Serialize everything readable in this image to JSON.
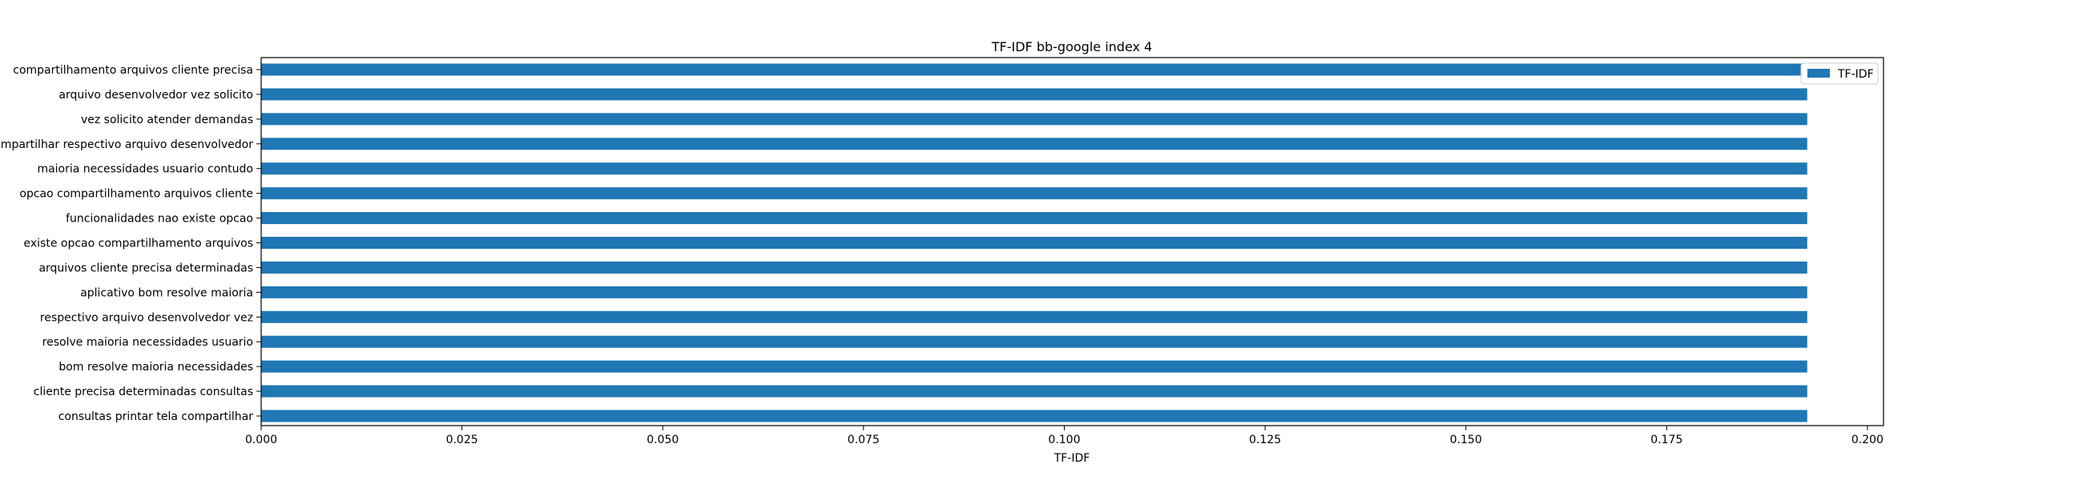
{
  "chart_data": {
    "type": "bar",
    "orientation": "horizontal",
    "title": "TF-IDF bb-google index 4",
    "xlabel": "TF-IDF",
    "ylabel": "",
    "xlim": [
      0,
      0.202
    ],
    "xticks": [
      "0.000",
      "0.025",
      "0.050",
      "0.075",
      "0.100",
      "0.125",
      "0.150",
      "0.175",
      "0.200"
    ],
    "xtick_values": [
      0,
      0.025,
      0.05,
      0.075,
      0.1,
      0.125,
      0.15,
      0.175,
      0.2
    ],
    "categories": [
      "compartilhamento arquivos cliente precisa",
      "arquivo desenvolvedor vez solicito",
      "vez solicito atender demandas",
      "compartilhar respectivo arquivo desenvolvedor",
      "maioria necessidades usuario contudo",
      "opcao compartilhamento arquivos cliente",
      "funcionalidades nao existe opcao",
      "existe opcao compartilhamento arquivos",
      "arquivos cliente precisa determinadas",
      "aplicativo bom resolve maioria",
      "respectivo arquivo desenvolvedor vez",
      "resolve maioria necessidades usuario",
      "bom resolve maioria necessidades",
      "cliente precisa determinadas consultas",
      "consultas printar tela compartilhar"
    ],
    "series": [
      {
        "name": "TF-IDF",
        "color": "#1f77b4",
        "values": [
          0.1925,
          0.1925,
          0.1925,
          0.1925,
          0.1925,
          0.1925,
          0.1925,
          0.1925,
          0.1925,
          0.1925,
          0.1925,
          0.1925,
          0.1925,
          0.1925,
          0.1925
        ]
      }
    ],
    "legend_position": "top-right",
    "grid": false
  }
}
